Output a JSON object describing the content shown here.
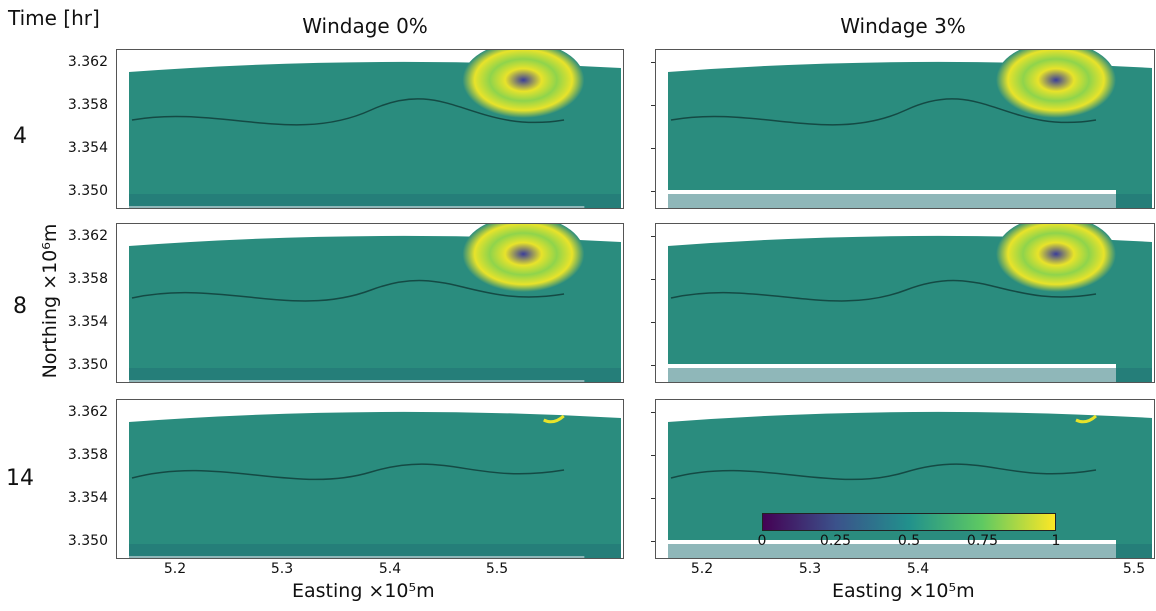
{
  "header": {
    "time_label": "Time [hr]",
    "col_titles": [
      "Windage 0%",
      "Windage 3%"
    ]
  },
  "rows": [
    {
      "label": "4"
    },
    {
      "label": "8"
    },
    {
      "label": "14"
    }
  ],
  "axes": {
    "ylabel": "Northing ×10⁶m",
    "xlabel": "Easting ×10⁵m",
    "yticks": [
      "3.362",
      "3.358",
      "3.354",
      "3.350"
    ],
    "xticks": [
      "5.2",
      "5.3",
      "5.4",
      "5.5"
    ]
  },
  "colorbar": {
    "ticks": [
      "0",
      "0.25",
      "0.5",
      "0.75",
      "1"
    ],
    "colors": [
      "#440154",
      "#3b528b",
      "#21918c",
      "#5ec962",
      "#fde725"
    ]
  },
  "colors": {
    "field": "#2a8c7e",
    "field_dark": "#1f6f73",
    "plume_bright": "#e8e32a",
    "plume_mid": "#8fd44c",
    "plume_core": "#3a3d9a"
  }
}
